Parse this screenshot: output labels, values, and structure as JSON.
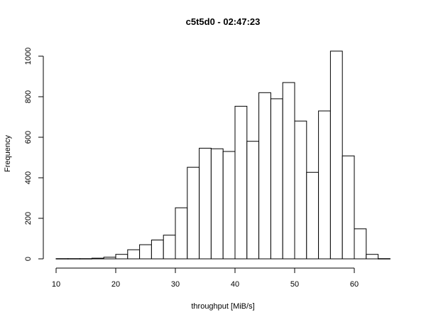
{
  "chart_data": {
    "type": "bar",
    "title": "c5t5d0 - 02:47:23",
    "xlabel": "throughput [MiB/s]",
    "ylabel": "Frequency",
    "xlim": [
      10,
      66
    ],
    "ylim": [
      0,
      1000
    ],
    "x_ticks": [
      10,
      20,
      30,
      40,
      50,
      60
    ],
    "y_ticks": [
      0,
      200,
      400,
      600,
      800,
      1000
    ],
    "bin_width": 2,
    "bins": [
      {
        "x0": 10,
        "x1": 12,
        "value": 1
      },
      {
        "x0": 12,
        "x1": 14,
        "value": 1
      },
      {
        "x0": 14,
        "x1": 16,
        "value": 1
      },
      {
        "x0": 16,
        "x1": 18,
        "value": 3
      },
      {
        "x0": 18,
        "x1": 20,
        "value": 8
      },
      {
        "x0": 20,
        "x1": 22,
        "value": 22
      },
      {
        "x0": 22,
        "x1": 24,
        "value": 45
      },
      {
        "x0": 24,
        "x1": 26,
        "value": 70
      },
      {
        "x0": 26,
        "x1": 28,
        "value": 93
      },
      {
        "x0": 28,
        "x1": 30,
        "value": 117
      },
      {
        "x0": 30,
        "x1": 32,
        "value": 252
      },
      {
        "x0": 32,
        "x1": 34,
        "value": 452
      },
      {
        "x0": 34,
        "x1": 36,
        "value": 546
      },
      {
        "x0": 36,
        "x1": 38,
        "value": 543
      },
      {
        "x0": 38,
        "x1": 40,
        "value": 530
      },
      {
        "x0": 40,
        "x1": 42,
        "value": 753
      },
      {
        "x0": 42,
        "x1": 44,
        "value": 580
      },
      {
        "x0": 44,
        "x1": 46,
        "value": 820
      },
      {
        "x0": 46,
        "x1": 48,
        "value": 790
      },
      {
        "x0": 48,
        "x1": 50,
        "value": 870
      },
      {
        "x0": 50,
        "x1": 52,
        "value": 680
      },
      {
        "x0": 52,
        "x1": 54,
        "value": 427
      },
      {
        "x0": 54,
        "x1": 56,
        "value": 730
      },
      {
        "x0": 56,
        "x1": 58,
        "value": 1025
      },
      {
        "x0": 58,
        "x1": 60,
        "value": 508
      },
      {
        "x0": 60,
        "x1": 62,
        "value": 148
      },
      {
        "x0": 62,
        "x1": 64,
        "value": 22
      },
      {
        "x0": 64,
        "x1": 66,
        "value": 1
      }
    ],
    "grid": false,
    "legend": "none"
  }
}
